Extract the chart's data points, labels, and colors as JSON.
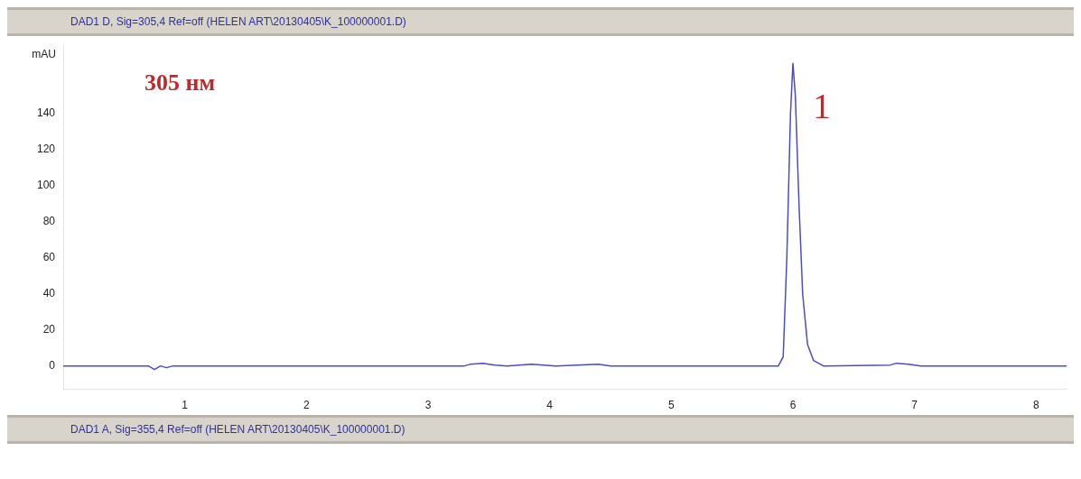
{
  "chart_data": {
    "type": "line",
    "title": "DAD1 D, Sig=305,4 Ref=off (HELEN ART\\20130405\\K_100000001.D)",
    "ylabel": "mAU",
    "x": [
      0,
      0.7,
      0.75,
      0.8,
      0.85,
      0.9,
      3.3,
      3.35,
      3.45,
      3.55,
      3.65,
      3.85,
      3.95,
      4.05,
      4.4,
      4.5,
      5.88,
      5.92,
      5.95,
      5.98,
      6.0,
      6.02,
      6.05,
      6.08,
      6.12,
      6.17,
      6.25,
      6.8,
      6.85,
      6.95,
      7.05,
      8.25
    ],
    "series": [
      {
        "color": "#4a4ad0",
        "values": [
          0,
          0,
          -2,
          0,
          -1,
          0,
          0,
          1,
          1.5,
          0.5,
          0,
          1,
          0.5,
          0,
          1,
          0,
          0,
          5,
          60,
          140,
          168,
          150,
          90,
          40,
          12,
          3,
          0,
          0.5,
          1.5,
          1,
          0,
          0
        ]
      }
    ],
    "xlim": [
      0,
      8.25
    ],
    "xticks": [
      1,
      2,
      3,
      4,
      5,
      6,
      7,
      8
    ],
    "ylim": [
      -13,
      178
    ],
    "yticks": [
      0,
      20,
      40,
      60,
      80,
      100,
      120,
      140
    ],
    "grid": false,
    "legend": false,
    "marker": "none",
    "line_style": "solid",
    "annotations": [
      "305 нм",
      {
        "text": "1",
        "x": 6.0,
        "y": 168
      },
      "DAD1 A, Sig=355,4 Ref=off (HELEN ART\\20130405\\K_100000001.D)"
    ]
  }
}
